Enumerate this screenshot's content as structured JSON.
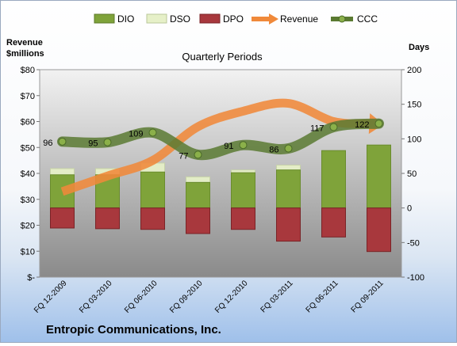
{
  "chart_data": {
    "type": "bar",
    "title": "Quarterly Periods",
    "company": "Entropic Communications, Inc.",
    "left_axis_label": "Revenue\n$millions",
    "right_axis_label": "Days",
    "categories": [
      "FQ 12-2009",
      "FQ 03-2010",
      "FQ 06-2010",
      "FQ 09-2010",
      "FQ 12-2010",
      "FQ 03-2011",
      "FQ 06-2011",
      "FQ 09-2011"
    ],
    "left_ticks": [
      "$-",
      "$10",
      "$20",
      "$30",
      "$40",
      "$50",
      "$60",
      "$70",
      "$80"
    ],
    "right_ticks": [
      "-100",
      "-50",
      "0",
      "50",
      "100",
      "150",
      "200"
    ],
    "left_ylim": [
      0,
      80
    ],
    "right_ylim": [
      -100,
      200
    ],
    "legend_position": "top",
    "grid": false,
    "series": [
      {
        "name": "DIO",
        "axis": "right",
        "color": "#7fa33a",
        "values": [
          48,
          48,
          52,
          37,
          51,
          55,
          83,
          91
        ]
      },
      {
        "name": "DSO",
        "axis": "right",
        "color": "#e6f0c8",
        "values": [
          57,
          57,
          65,
          45,
          55,
          62,
          78,
          91
        ]
      },
      {
        "name": "DPO",
        "axis": "right",
        "color": "#a8383d",
        "values": [
          -29,
          -30,
          -31,
          -37,
          -31,
          -48,
          -42,
          -63
        ]
      },
      {
        "name": "Revenue",
        "axis": "left",
        "color": "#f0893a",
        "values": [
          33,
          39,
          45,
          58,
          64,
          67,
          60,
          59
        ]
      },
      {
        "name": "CCC",
        "axis": "right",
        "color": "#5a7a32",
        "values": [
          96,
          95,
          109,
          77,
          91,
          86,
          117,
          122
        ]
      }
    ],
    "ccc_labels": [
      "96",
      "95",
      "109",
      "77",
      "91",
      "86",
      "117",
      "122"
    ]
  }
}
